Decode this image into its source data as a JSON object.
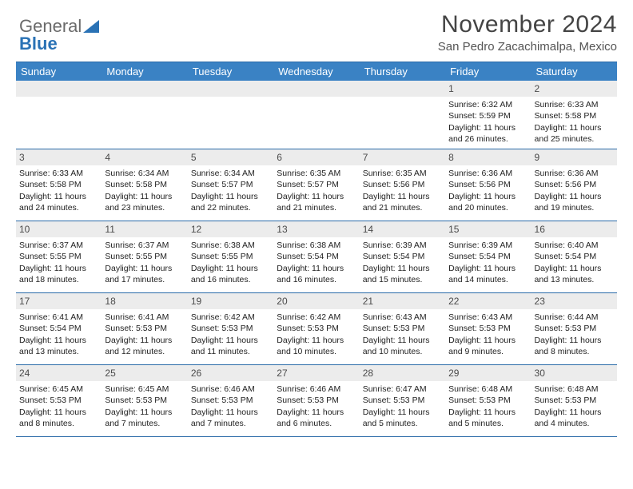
{
  "logo": {
    "part1": "General",
    "part2": "Blue"
  },
  "title": "November 2024",
  "subtitle": "San Pedro Zacachimalpa, Mexico",
  "colors": {
    "header_bg": "#3a82c4",
    "header_text": "#ffffff",
    "border": "#2a6aa8",
    "daynum_bg": "#ececec",
    "daynum_text": "#4a4a4a",
    "body_text": "#222222",
    "logo_gray": "#6a6a6a",
    "logo_blue": "#2a72b5"
  },
  "typography": {
    "title_fontsize": 30,
    "subtitle_fontsize": 15,
    "header_fontsize": 13,
    "cell_fontsize": 10.5
  },
  "daysOfWeek": [
    "Sunday",
    "Monday",
    "Tuesday",
    "Wednesday",
    "Thursday",
    "Friday",
    "Saturday"
  ],
  "weeks": [
    [
      null,
      null,
      null,
      null,
      null,
      {
        "n": "1",
        "sr": "6:32 AM",
        "ss": "5:59 PM",
        "dl": "11 hours and 26 minutes."
      },
      {
        "n": "2",
        "sr": "6:33 AM",
        "ss": "5:58 PM",
        "dl": "11 hours and 25 minutes."
      }
    ],
    [
      {
        "n": "3",
        "sr": "6:33 AM",
        "ss": "5:58 PM",
        "dl": "11 hours and 24 minutes."
      },
      {
        "n": "4",
        "sr": "6:34 AM",
        "ss": "5:58 PM",
        "dl": "11 hours and 23 minutes."
      },
      {
        "n": "5",
        "sr": "6:34 AM",
        "ss": "5:57 PM",
        "dl": "11 hours and 22 minutes."
      },
      {
        "n": "6",
        "sr": "6:35 AM",
        "ss": "5:57 PM",
        "dl": "11 hours and 21 minutes."
      },
      {
        "n": "7",
        "sr": "6:35 AM",
        "ss": "5:56 PM",
        "dl": "11 hours and 21 minutes."
      },
      {
        "n": "8",
        "sr": "6:36 AM",
        "ss": "5:56 PM",
        "dl": "11 hours and 20 minutes."
      },
      {
        "n": "9",
        "sr": "6:36 AM",
        "ss": "5:56 PM",
        "dl": "11 hours and 19 minutes."
      }
    ],
    [
      {
        "n": "10",
        "sr": "6:37 AM",
        "ss": "5:55 PM",
        "dl": "11 hours and 18 minutes."
      },
      {
        "n": "11",
        "sr": "6:37 AM",
        "ss": "5:55 PM",
        "dl": "11 hours and 17 minutes."
      },
      {
        "n": "12",
        "sr": "6:38 AM",
        "ss": "5:55 PM",
        "dl": "11 hours and 16 minutes."
      },
      {
        "n": "13",
        "sr": "6:38 AM",
        "ss": "5:54 PM",
        "dl": "11 hours and 16 minutes."
      },
      {
        "n": "14",
        "sr": "6:39 AM",
        "ss": "5:54 PM",
        "dl": "11 hours and 15 minutes."
      },
      {
        "n": "15",
        "sr": "6:39 AM",
        "ss": "5:54 PM",
        "dl": "11 hours and 14 minutes."
      },
      {
        "n": "16",
        "sr": "6:40 AM",
        "ss": "5:54 PM",
        "dl": "11 hours and 13 minutes."
      }
    ],
    [
      {
        "n": "17",
        "sr": "6:41 AM",
        "ss": "5:54 PM",
        "dl": "11 hours and 13 minutes."
      },
      {
        "n": "18",
        "sr": "6:41 AM",
        "ss": "5:53 PM",
        "dl": "11 hours and 12 minutes."
      },
      {
        "n": "19",
        "sr": "6:42 AM",
        "ss": "5:53 PM",
        "dl": "11 hours and 11 minutes."
      },
      {
        "n": "20",
        "sr": "6:42 AM",
        "ss": "5:53 PM",
        "dl": "11 hours and 10 minutes."
      },
      {
        "n": "21",
        "sr": "6:43 AM",
        "ss": "5:53 PM",
        "dl": "11 hours and 10 minutes."
      },
      {
        "n": "22",
        "sr": "6:43 AM",
        "ss": "5:53 PM",
        "dl": "11 hours and 9 minutes."
      },
      {
        "n": "23",
        "sr": "6:44 AM",
        "ss": "5:53 PM",
        "dl": "11 hours and 8 minutes."
      }
    ],
    [
      {
        "n": "24",
        "sr": "6:45 AM",
        "ss": "5:53 PM",
        "dl": "11 hours and 8 minutes."
      },
      {
        "n": "25",
        "sr": "6:45 AM",
        "ss": "5:53 PM",
        "dl": "11 hours and 7 minutes."
      },
      {
        "n": "26",
        "sr": "6:46 AM",
        "ss": "5:53 PM",
        "dl": "11 hours and 7 minutes."
      },
      {
        "n": "27",
        "sr": "6:46 AM",
        "ss": "5:53 PM",
        "dl": "11 hours and 6 minutes."
      },
      {
        "n": "28",
        "sr": "6:47 AM",
        "ss": "5:53 PM",
        "dl": "11 hours and 5 minutes."
      },
      {
        "n": "29",
        "sr": "6:48 AM",
        "ss": "5:53 PM",
        "dl": "11 hours and 5 minutes."
      },
      {
        "n": "30",
        "sr": "6:48 AM",
        "ss": "5:53 PM",
        "dl": "11 hours and 4 minutes."
      }
    ]
  ],
  "labels": {
    "sunrise": "Sunrise:",
    "sunset": "Sunset:",
    "daylight": "Daylight:"
  }
}
